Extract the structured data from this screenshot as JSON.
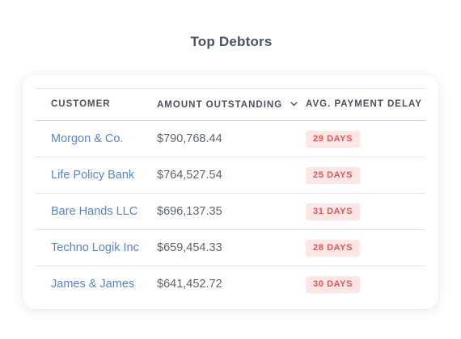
{
  "title": "Top Debtors",
  "table": {
    "headers": {
      "customer": "CUSTOMER",
      "amount": "AMOUNT OUTSTANDING",
      "delay": "AVG. PAYMENT DELAY"
    },
    "sort_icon": "chevron-down-icon",
    "rows": [
      {
        "customer": "Morgon & Co.",
        "amount": "$790,768.44",
        "delay": "29 DAYS"
      },
      {
        "customer": "Life Policy Bank",
        "amount": "$764,527.54",
        "delay": "25 DAYS"
      },
      {
        "customer": "Bare Hands LLC",
        "amount": "$696,137.35",
        "delay": "31 DAYS"
      },
      {
        "customer": "Techno Logik Inc",
        "amount": "$659,454.33",
        "delay": "28 DAYS"
      },
      {
        "customer": "James & James",
        "amount": "$641,452.72",
        "delay": "30 DAYS"
      }
    ]
  },
  "colors": {
    "link": "#5b84c4",
    "badge_bg": "#fde6e6",
    "badge_text": "#e25555",
    "header_text": "#4a5161"
  }
}
